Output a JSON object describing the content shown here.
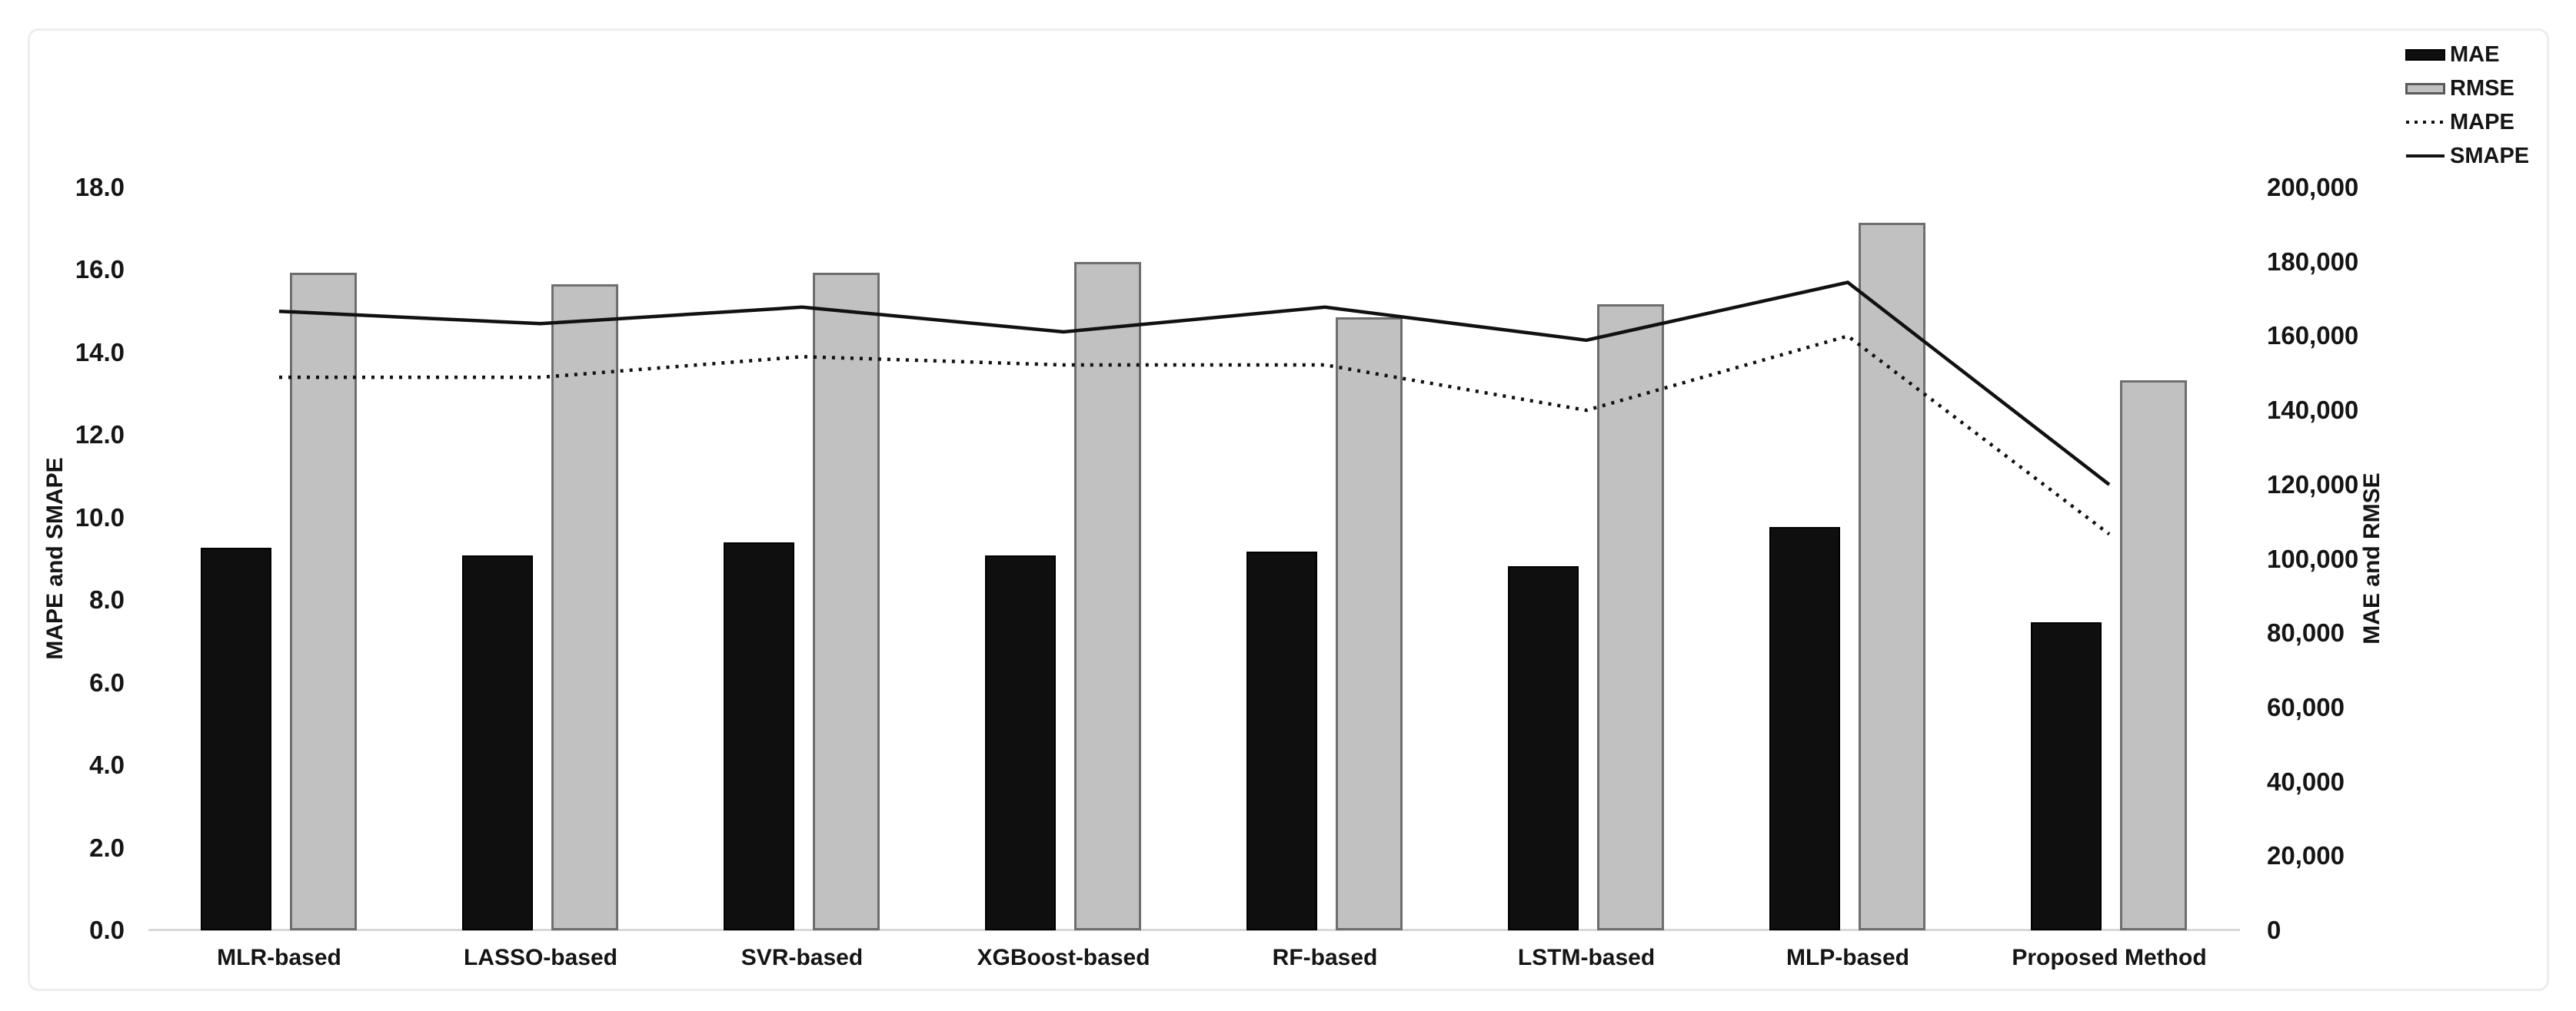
{
  "left_axis": {
    "title": "MAPE and SMAPE",
    "min": 0,
    "max": 18,
    "step": 2,
    "ticks": [
      "0.0",
      "2.0",
      "4.0",
      "6.0",
      "8.0",
      "10.0",
      "12.0",
      "14.0",
      "16.0",
      "18.0"
    ]
  },
  "right_axis": {
    "title": "MAE and RMSE",
    "min": 0,
    "max": 200000,
    "step": 20000,
    "ticks": [
      "0",
      "20,000",
      "40,000",
      "60,000",
      "80,000",
      "100,000",
      "120,000",
      "140,000",
      "160,000",
      "180,000",
      "200,000"
    ]
  },
  "legend": {
    "items": [
      {
        "label": "MAE",
        "swatch": "bar-black"
      },
      {
        "label": "RMSE",
        "swatch": "bar-gray"
      },
      {
        "label": "MAPE",
        "swatch": "dotted-line"
      },
      {
        "label": "SMAPE",
        "swatch": "solid-line"
      }
    ]
  },
  "colors": {
    "mae_bar": "#0f0f0f",
    "rmse_bar_fill": "#c1c1c1",
    "rmse_bar_border": "#6e6e6e",
    "line_color": "#111111",
    "baseline": "#d9d9d9",
    "frame_border": "#ededed",
    "text": "#151515"
  },
  "chart_data": {
    "type": "bar+line combo, dual axis",
    "categories": [
      "MLR-based",
      "LASSO-based",
      "SVR-based",
      "XGBoost-based",
      "RF-based",
      "LSTM-based",
      "MLP-based",
      "Proposed Method"
    ],
    "series": [
      {
        "name": "MAE",
        "type": "bar",
        "axis": "right",
        "style": "solid-black",
        "values": [
          103000,
          101000,
          104500,
          101000,
          102000,
          98000,
          108500,
          83000
        ]
      },
      {
        "name": "RMSE",
        "type": "bar",
        "axis": "right",
        "style": "gray-outlined",
        "values": [
          177000,
          174000,
          177000,
          180000,
          165000,
          168500,
          190500,
          148000
        ]
      },
      {
        "name": "MAPE",
        "type": "line",
        "axis": "left",
        "style": "dotted",
        "values": [
          13.4,
          13.4,
          13.9,
          13.7,
          13.7,
          12.6,
          14.4,
          9.6
        ]
      },
      {
        "name": "SMAPE",
        "type": "line",
        "axis": "left",
        "style": "solid",
        "values": [
          15.0,
          14.7,
          15.1,
          14.5,
          15.1,
          14.3,
          15.7,
          10.8
        ]
      }
    ],
    "left_ylim": [
      0,
      18
    ],
    "right_ylim": [
      0,
      200000
    ],
    "grid": false,
    "legend_position": "top-right"
  }
}
